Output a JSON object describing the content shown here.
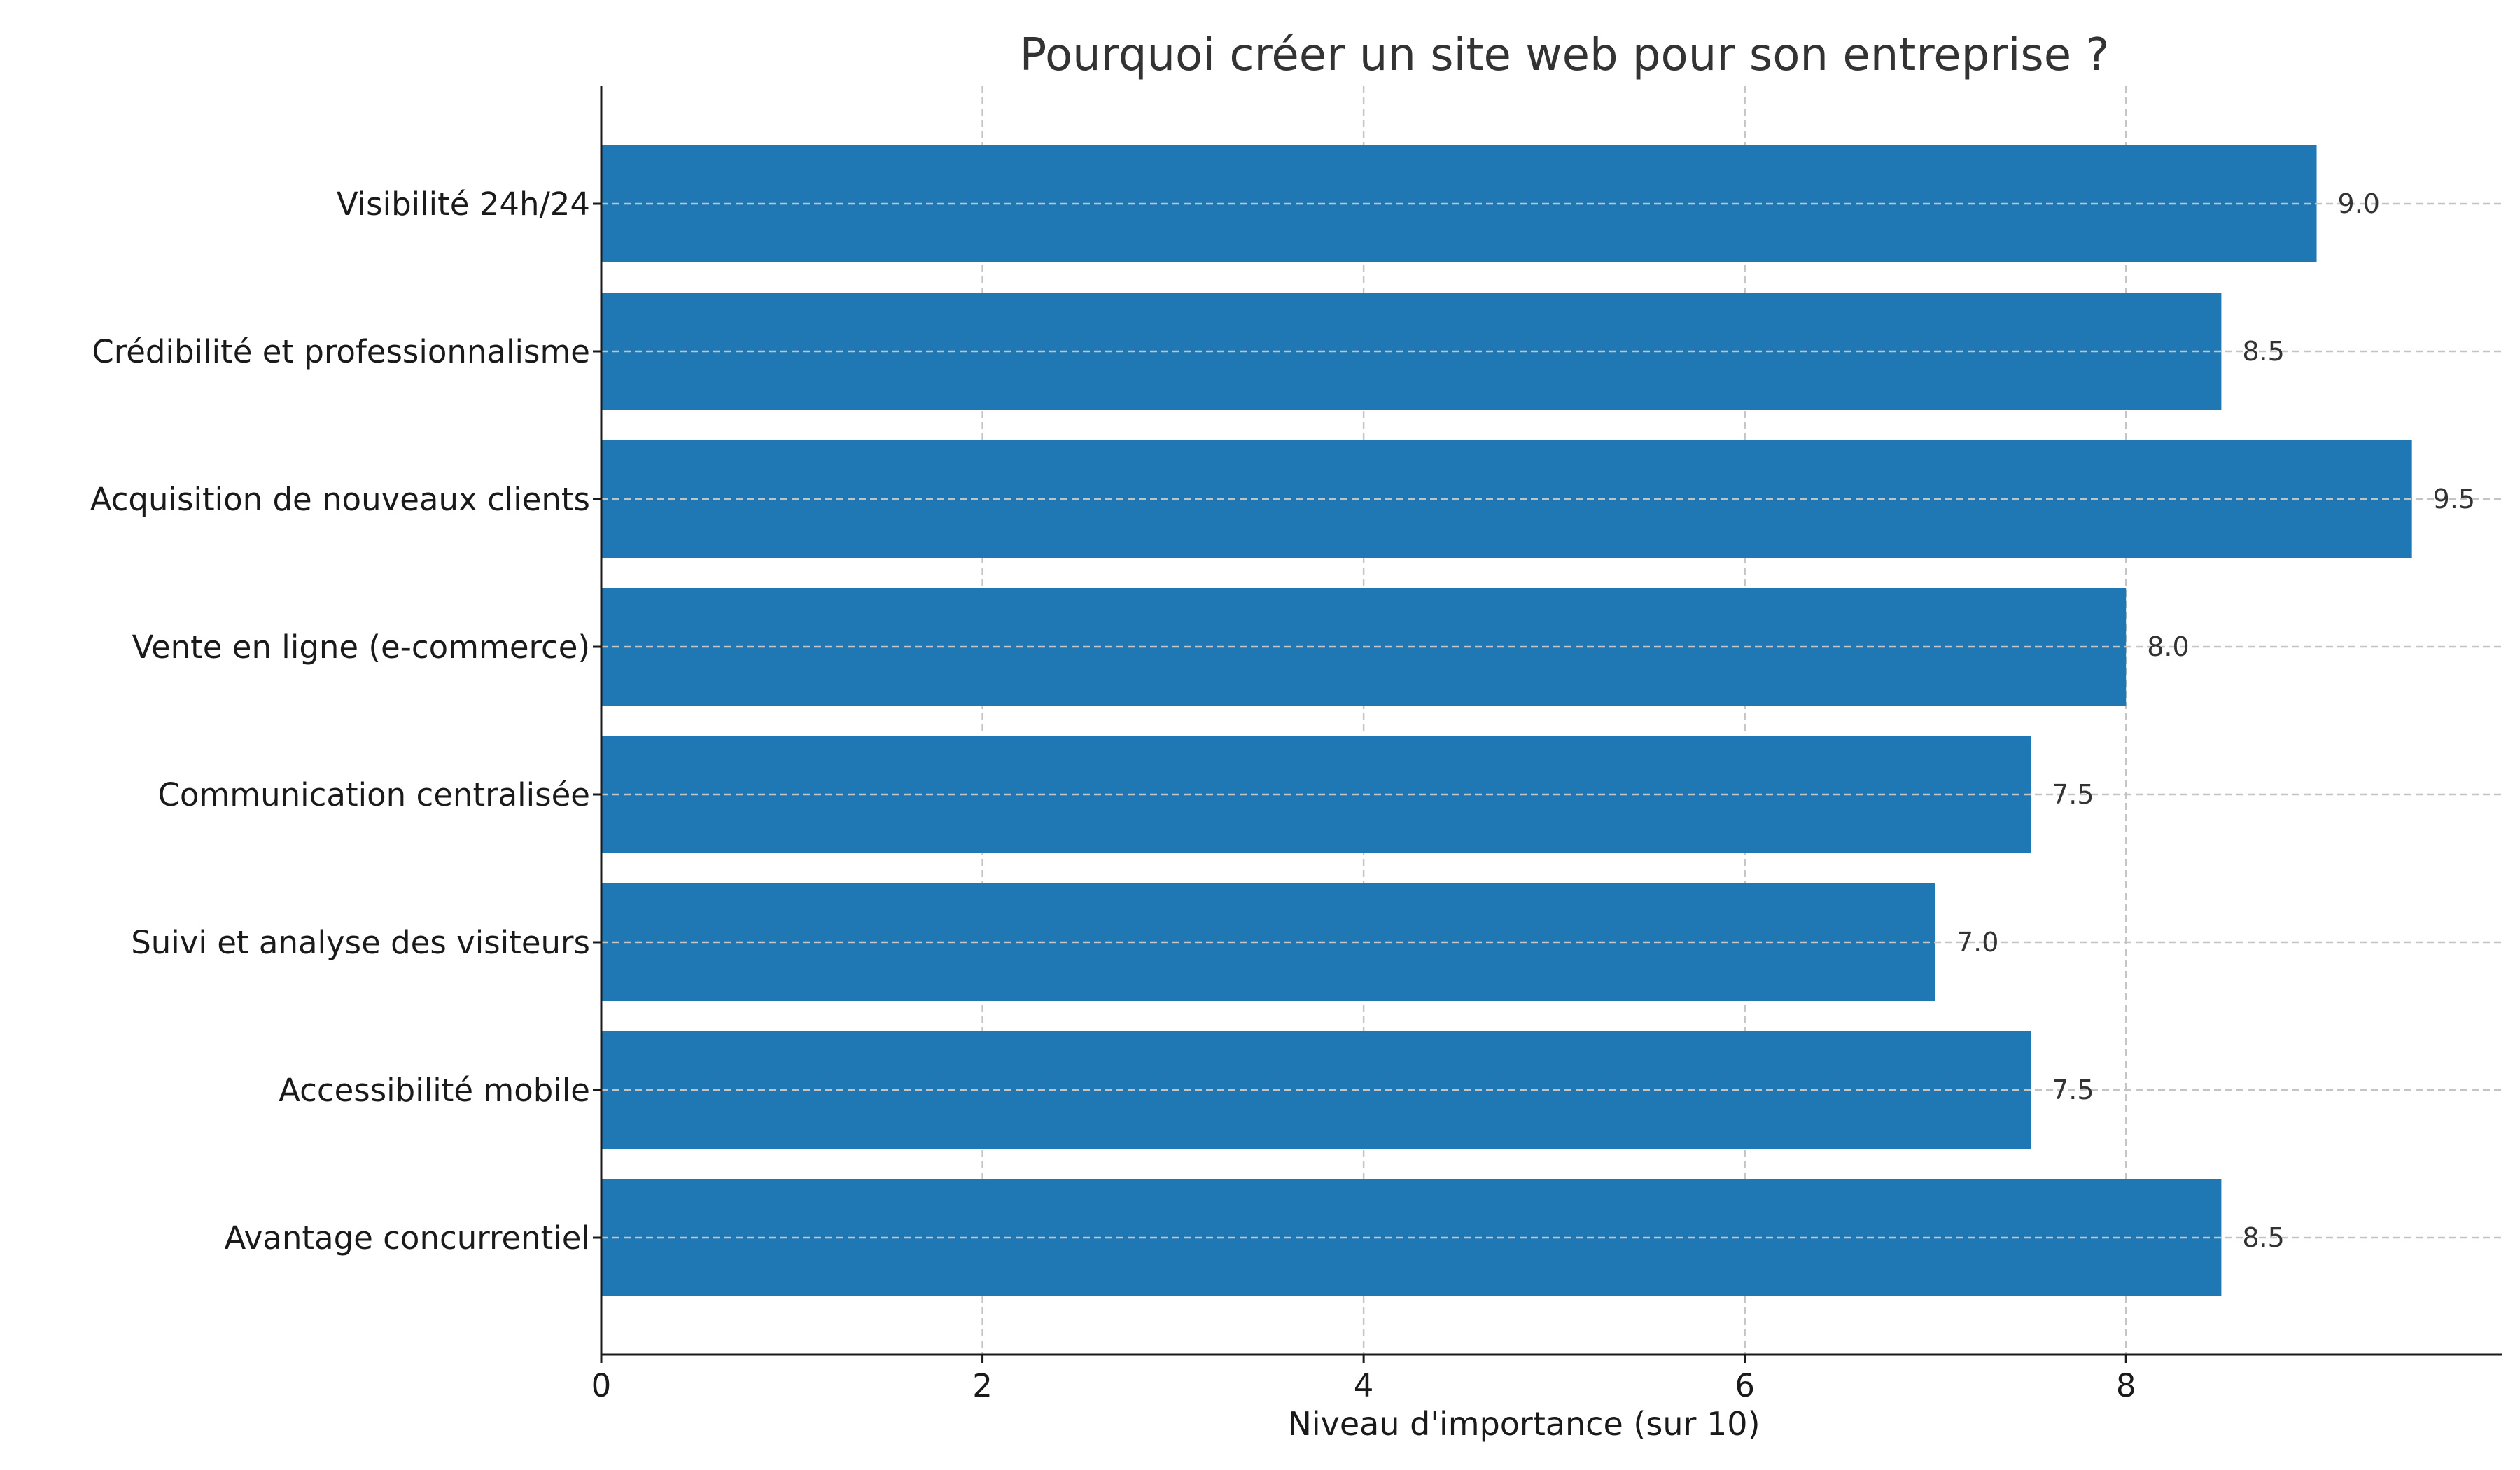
{
  "chart_data": {
    "type": "bar",
    "orientation": "horizontal",
    "title": "Pourquoi créer un site web pour son entreprise ?",
    "xlabel": "Niveau d'importance (sur 10)",
    "ylabel": "",
    "categories": [
      "Visibilité 24h/24",
      "Crédibilité et professionnalisme",
      "Acquisition de nouveaux clients",
      "Vente en ligne (e-commerce)",
      "Communication centralisée",
      "Suivi et analyse des visiteurs",
      "Accessibilité mobile",
      "Avantage concurrentiel"
    ],
    "values": [
      9.0,
      8.5,
      9.5,
      8.0,
      7.5,
      7.0,
      7.5,
      8.5
    ],
    "value_labels": [
      "9.0",
      "8.5",
      "9.5",
      "8.0",
      "7.5",
      "7.0",
      "7.5",
      "8.5"
    ],
    "xlim": [
      0,
      9.975
    ],
    "xticks": [
      0,
      2,
      4,
      6,
      8
    ],
    "xtick_labels": [
      "0",
      "2",
      "4",
      "6",
      "8"
    ],
    "grid": true,
    "bar_color": "#1f77b4"
  }
}
